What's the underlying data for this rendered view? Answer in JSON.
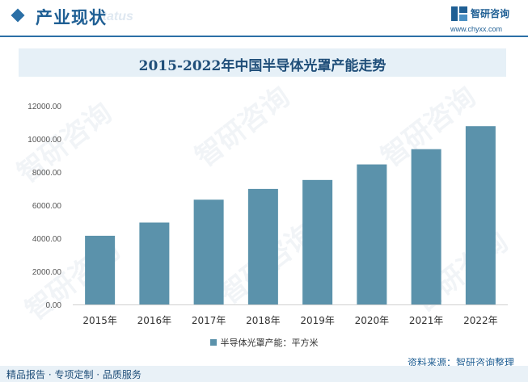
{
  "header": {
    "title": "产业现状",
    "title_en": "Status",
    "brand_name": "智研咨询",
    "brand_url": "www.chyxx.com"
  },
  "chart_title": "2015-2022年中国半导体光罩产能走势",
  "legend_label": "半导体光罩产能：平方米",
  "source": "资料来源：智研咨询整理",
  "footer": "精品报告 · 专项定制 · 品质服务",
  "watermark": "智研咨询",
  "colors": {
    "bar": "#5b92ab",
    "brand": "#1f5f94",
    "banner": "#e6f0f7"
  },
  "chart_data": {
    "type": "bar",
    "title": "2015-2022年中国半导体光罩产能走势",
    "categories": [
      "2015年",
      "2016年",
      "2017年",
      "2018年",
      "2019年",
      "2020年",
      "2021年",
      "2022年"
    ],
    "series": [
      {
        "name": "半导体光罩产能：平方米",
        "values": [
          4150,
          4950,
          6330,
          6980,
          7520,
          8460,
          9380,
          10770
        ]
      }
    ],
    "ylim": [
      0,
      12000
    ],
    "yticks": [
      "0.00",
      "2000.00",
      "4000.00",
      "6000.00",
      "8000.00",
      "10000.00",
      "12000.00"
    ],
    "grid": false,
    "legend": "bottom"
  }
}
